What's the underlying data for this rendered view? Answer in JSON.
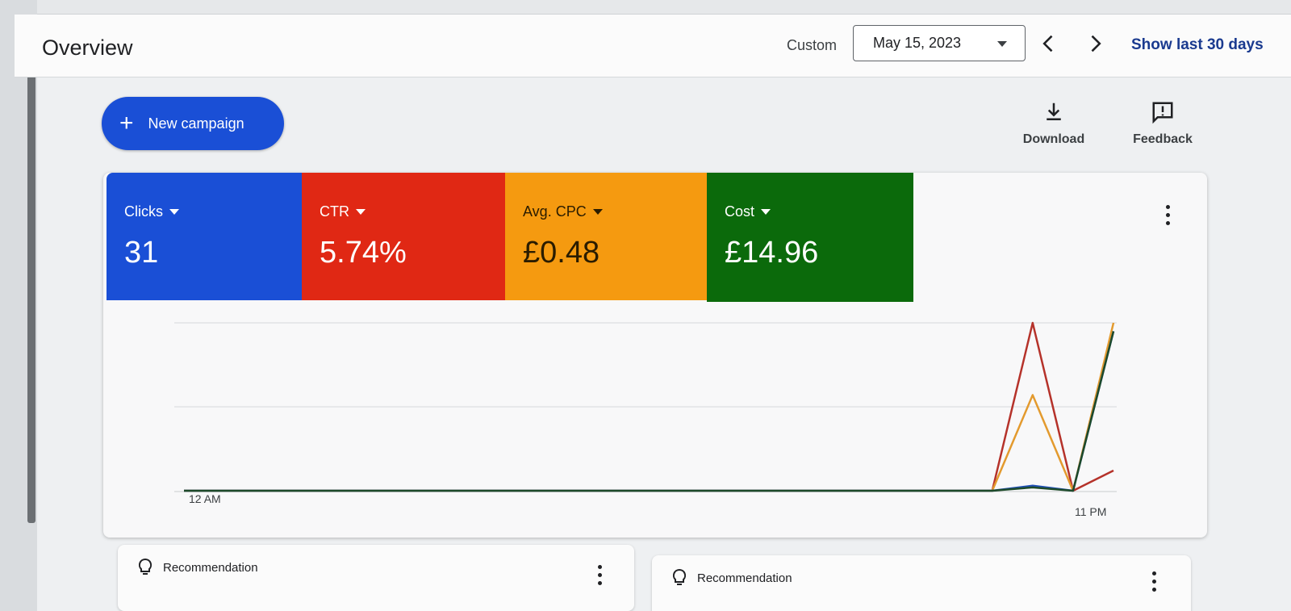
{
  "header": {
    "title": "Overview",
    "date_mode": "Custom",
    "date_value": "May 15, 2023",
    "show_last": "Show last 30 days"
  },
  "toolbar": {
    "new_campaign_label": "New campaign",
    "download_label": "Download",
    "feedback_label": "Feedback"
  },
  "metrics": [
    {
      "label": "Clicks",
      "value": "31",
      "color": "#1a4fd6"
    },
    {
      "label": "CTR",
      "value": "5.74%",
      "color": "#e02814"
    },
    {
      "label": "Avg. CPC",
      "value": "£0.48",
      "color": "#f59a10"
    },
    {
      "label": "Cost",
      "value": "£14.96",
      "color": "#0b6a0b"
    }
  ],
  "chart_data": {
    "type": "line",
    "x_start_label": "12 AM",
    "x_end_label": "11 PM",
    "x_hours": [
      0,
      1,
      2,
      3,
      4,
      5,
      6,
      7,
      8,
      9,
      10,
      11,
      12,
      13,
      14,
      15,
      16,
      17,
      18,
      19,
      20,
      21,
      22,
      23
    ],
    "grid": true,
    "series": [
      {
        "metric": "CTR",
        "color": "#b5322a",
        "values": [
          0,
          0,
          0,
          0,
          0,
          0,
          0,
          0,
          0,
          0,
          0,
          0,
          0,
          0,
          0,
          0,
          0,
          0,
          0,
          0,
          0,
          1.0,
          0,
          0.12
        ]
      },
      {
        "metric": "Avg. CPC",
        "color": "#e39a2e",
        "values": [
          0,
          0,
          0,
          0,
          0,
          0,
          0,
          0,
          0,
          0,
          0,
          0,
          0,
          0,
          0,
          0,
          0,
          0,
          0,
          0,
          0,
          0.57,
          0,
          1.0
        ]
      },
      {
        "metric": "Clicks",
        "color": "#1f4fb5",
        "values": [
          0,
          0,
          0,
          0,
          0,
          0,
          0,
          0,
          0,
          0,
          0,
          0,
          0,
          0,
          0,
          0,
          0,
          0,
          0,
          0,
          0,
          0.03,
          0,
          0.95
        ]
      },
      {
        "metric": "Cost",
        "color": "#1d4a2a",
        "values": [
          0,
          0,
          0,
          0,
          0,
          0,
          0,
          0,
          0,
          0,
          0,
          0,
          0,
          0,
          0,
          0,
          0,
          0,
          0,
          0,
          0,
          0.02,
          0,
          0.95
        ]
      }
    ]
  },
  "recommendations": [
    {
      "label": "Recommendation"
    },
    {
      "label": "Recommendation"
    }
  ]
}
